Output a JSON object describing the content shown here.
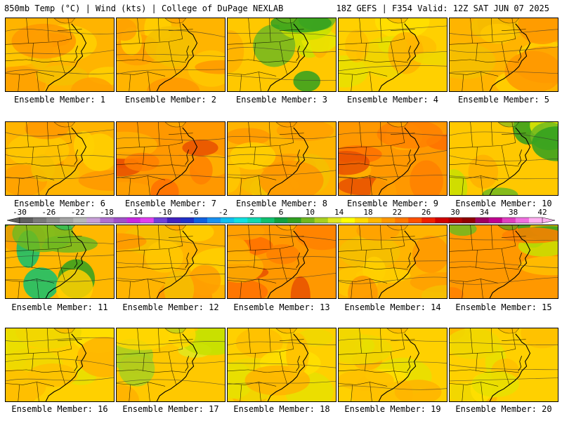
{
  "header": {
    "left": "850mb Temp (°C) | Wind (kts) | College of DuPage NEXLAB",
    "right": "18Z GEFS | F354 Valid: 12Z SAT JUN 07 2025"
  },
  "panels": [
    {
      "label": "Ensemble Member: 1",
      "theme": "warm",
      "seed": 1
    },
    {
      "label": "Ensemble Member: 2",
      "theme": "warm",
      "seed": 2
    },
    {
      "label": "Ensemble Member: 3",
      "theme": "greenNE",
      "seed": 3
    },
    {
      "label": "Ensemble Member: 4",
      "theme": "mild",
      "seed": 4
    },
    {
      "label": "Ensemble Member: 5",
      "theme": "warm",
      "seed": 5
    },
    {
      "label": "Ensemble Member: 6",
      "theme": "warm",
      "seed": 6
    },
    {
      "label": "Ensemble Member: 7",
      "theme": "hot",
      "seed": 7
    },
    {
      "label": "Ensemble Member: 8",
      "theme": "warm",
      "seed": 8
    },
    {
      "label": "Ensemble Member: 9",
      "theme": "hot",
      "seed": 9
    },
    {
      "label": "Ensemble Member: 10",
      "theme": "greenNE",
      "seed": 10
    },
    {
      "label": "Ensemble Member: 11",
      "theme": "coolNW",
      "seed": 11
    },
    {
      "label": "Ensemble Member: 12",
      "theme": "warm",
      "seed": 12
    },
    {
      "label": "Ensemble Member: 13",
      "theme": "hot",
      "seed": 13
    },
    {
      "label": "Ensemble Member: 14",
      "theme": "warm",
      "seed": 14
    },
    {
      "label": "Ensemble Member: 15",
      "theme": "greenNEhot",
      "seed": 15
    },
    {
      "label": "Ensemble Member: 16",
      "theme": "mild",
      "seed": 16
    },
    {
      "label": "Ensemble Member: 17",
      "theme": "mildGreen",
      "seed": 17
    },
    {
      "label": "Ensemble Member: 18",
      "theme": "mild",
      "seed": 18
    },
    {
      "label": "Ensemble Member: 19",
      "theme": "mild",
      "seed": 19
    },
    {
      "label": "Ensemble Member: 20",
      "theme": "mild",
      "seed": 20
    }
  ],
  "colorbar": {
    "ticks": [
      "-30",
      "-26",
      "-22",
      "-18",
      "-14",
      "-10",
      "-6",
      "-2",
      "2",
      "6",
      "10",
      "14",
      "18",
      "22",
      "26",
      "30",
      "34",
      "38",
      "42"
    ],
    "colors": [
      "#606060",
      "#7a7a7a",
      "#8e8e8e",
      "#a4a4a4",
      "#b8b8b8",
      "#c8a0d8",
      "#b070d0",
      "#a050c8",
      "#c828e0",
      "#e040f0",
      "#7040d8",
      "#4020c0",
      "#2030c8",
      "#1060e0",
      "#1890f0",
      "#10c0f0",
      "#10e0e0",
      "#10d8b0",
      "#10c070",
      "#10a040",
      "#30a020",
      "#70b820",
      "#a8d020",
      "#e0e820",
      "#ffff00",
      "#ffd800",
      "#ffb800",
      "#ff9800",
      "#ff7800",
      "#ff5000",
      "#f02000",
      "#d00000",
      "#b00000",
      "#900000",
      "#a00060",
      "#c00090",
      "#e040c0",
      "#f070e0",
      "#ffb0f0"
    ]
  },
  "colors": {
    "cold_ramp": "#606060",
    "hot_ramp": "#ffb0f0",
    "outline": "#000000"
  }
}
